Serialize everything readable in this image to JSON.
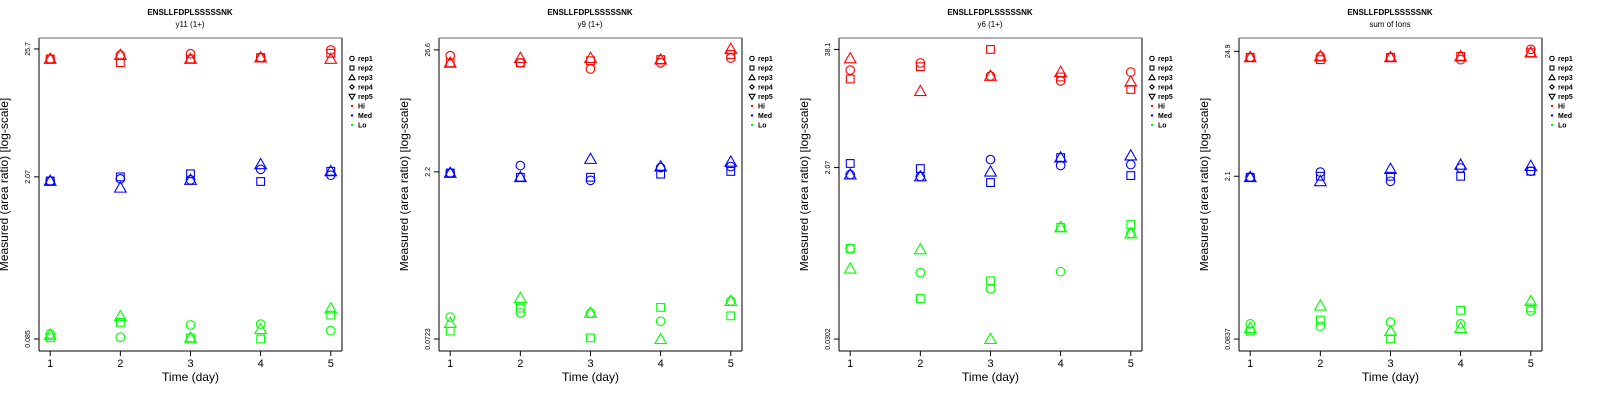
{
  "chart_data": [
    {
      "type": "scatter",
      "title": "ENSLLFDPLSSSSSNK",
      "subtitle": "y11 (1+)",
      "xlabel": "Time (day)",
      "ylabel": "Measured (area ratio) [log-scale]",
      "yscale": "log",
      "x_ticks": [
        "1",
        "2",
        "3",
        "4",
        "5"
      ],
      "y_ticks": [
        {
          "value": 25.7,
          "label": "25.7"
        },
        {
          "value": 2.07,
          "label": "2.07"
        },
        {
          "value": 0.085,
          "label": "0.085"
        }
      ],
      "xlim": [
        0.84,
        5.16
      ],
      "ylim": [
        0.0671,
        31.9
      ],
      "grid": false,
      "legend_position": "right",
      "legend": [
        {
          "label": "rep1",
          "symbol": "circle"
        },
        {
          "label": "rep2",
          "symbol": "square"
        },
        {
          "label": "rep3",
          "symbol": "triangle"
        },
        {
          "label": "rep4",
          "symbol": "diamond"
        },
        {
          "label": "rep5",
          "symbol": "triangle-down"
        },
        {
          "label": "Hi",
          "symbol": "dot",
          "color": "#ff0000"
        },
        {
          "label": "Med",
          "symbol": "dot",
          "color": "#0000ff"
        },
        {
          "label": "Lo",
          "symbol": "dot",
          "color": "#00ff00"
        }
      ],
      "x": [
        1,
        2,
        3,
        4,
        5
      ],
      "series": [
        {
          "name": "Hi rep1",
          "level": "Hi",
          "rep": "rep1",
          "values": [
            21.1,
            22.8,
            23.4,
            21.7,
            25.2
          ]
        },
        {
          "name": "Hi rep2",
          "level": "Hi",
          "rep": "rep2",
          "values": [
            21.1,
            19.6,
            21.1,
            21.7,
            23.6
          ]
        },
        {
          "name": "Hi rep3",
          "level": "Hi",
          "rep": "rep3",
          "values": [
            21.1,
            22.8,
            21.1,
            21.7,
            21.1
          ]
        },
        {
          "name": "Med rep1",
          "level": "Med",
          "rep": "rep1",
          "values": [
            1.91,
            1.99,
            1.95,
            2.4,
            2.14
          ]
        },
        {
          "name": "Med rep2",
          "level": "Med",
          "rep": "rep2",
          "values": [
            1.91,
            2.07,
            2.2,
            1.89,
            2.31
          ]
        },
        {
          "name": "Med rep3",
          "level": "Med",
          "rep": "rep3",
          "values": [
            1.91,
            1.67,
            1.95,
            2.65,
            2.31
          ]
        },
        {
          "name": "Lo rep1",
          "level": "Lo",
          "rep": "rep1",
          "values": [
            0.094,
            0.088,
            0.112,
            0.114,
            0.1
          ]
        },
        {
          "name": "Lo rep2",
          "level": "Lo",
          "rep": "rep2",
          "values": [
            0.087,
            0.118,
            0.087,
            0.085,
            0.136
          ]
        },
        {
          "name": "Lo rep3",
          "level": "Lo",
          "rep": "rep3",
          "values": [
            0.092,
            0.133,
            0.087,
            0.103,
            0.155
          ]
        }
      ]
    },
    {
      "type": "scatter",
      "title": "ENSLLFDPLSSSSSNK",
      "subtitle": "y9 (1+)",
      "xlabel": "Time (day)",
      "ylabel": "Measured (area ratio) [log-scale]",
      "yscale": "log",
      "x_ticks": [
        "1",
        "2",
        "3",
        "4",
        "5"
      ],
      "y_ticks": [
        {
          "value": 26.6,
          "label": "26.6"
        },
        {
          "value": 2.2,
          "label": "2.2"
        },
        {
          "value": 0.0723,
          "label": "0.0723"
        }
      ],
      "xlim": [
        0.84,
        5.16
      ],
      "ylim": [
        0.0566,
        33.9
      ],
      "grid": false,
      "legend_position": "right",
      "legend": [
        {
          "label": "rep1",
          "symbol": "circle"
        },
        {
          "label": "rep2",
          "symbol": "square"
        },
        {
          "label": "rep3",
          "symbol": "triangle"
        },
        {
          "label": "rep4",
          "symbol": "diamond"
        },
        {
          "label": "rep5",
          "symbol": "triangle-down"
        },
        {
          "label": "Hi",
          "symbol": "dot",
          "color": "#ff0000"
        },
        {
          "label": "Med",
          "symbol": "dot",
          "color": "#0000ff"
        },
        {
          "label": "Lo",
          "symbol": "dot",
          "color": "#00ff00"
        }
      ],
      "x": [
        1,
        2,
        3,
        4,
        5
      ],
      "series": [
        {
          "name": "Hi rep1",
          "level": "Hi",
          "rep": "rep1",
          "values": [
            23.6,
            20.4,
            18.0,
            20.4,
            22.5
          ]
        },
        {
          "name": "Hi rep2",
          "level": "Hi",
          "rep": "rep2",
          "values": [
            20.4,
            20.4,
            21.3,
            21.8,
            24.2
          ]
        },
        {
          "name": "Hi rep3",
          "level": "Hi",
          "rep": "rep3",
          "values": [
            20.4,
            22.5,
            22.5,
            21.8,
            27.1
          ]
        },
        {
          "name": "Med rep1",
          "level": "Med",
          "rep": "rep1",
          "values": [
            2.15,
            2.5,
            1.85,
            2.4,
            2.45
          ]
        },
        {
          "name": "Med rep2",
          "level": "Med",
          "rep": "rep2",
          "values": [
            2.15,
            1.97,
            1.97,
            2.1,
            2.22
          ]
        },
        {
          "name": "Med rep3",
          "level": "Med",
          "rep": "rep3",
          "values": [
            2.15,
            1.97,
            2.86,
            2.45,
            2.7
          ]
        },
        {
          "name": "Lo rep1",
          "level": "Lo",
          "rep": "rep1",
          "values": [
            0.113,
            0.123,
            0.123,
            0.104,
            0.157
          ]
        },
        {
          "name": "Lo rep2",
          "level": "Lo",
          "rep": "rep2",
          "values": [
            0.085,
            0.136,
            0.074,
            0.138,
            0.116
          ]
        },
        {
          "name": "Lo rep3",
          "level": "Lo",
          "rep": "rep3",
          "values": [
            0.1,
            0.167,
            0.123,
            0.072,
            0.157
          ]
        }
      ]
    },
    {
      "type": "scatter",
      "title": "ENSLLFDPLSSSSSNK",
      "subtitle": "y6 (1+)",
      "xlabel": "Time (day)",
      "ylabel": "Measured (area ratio) [log-scale]",
      "yscale": "log",
      "x_ticks": [
        "1",
        "2",
        "3",
        "4",
        "5"
      ],
      "y_ticks": [
        {
          "value": 38.1,
          "label": "38.1"
        },
        {
          "value": 2.07,
          "label": "2.07"
        },
        {
          "value": 0.0302,
          "label": "0.0302"
        }
      ],
      "xlim": [
        0.84,
        5.16
      ],
      "ylim": [
        0.0225,
        50.5
      ],
      "grid": false,
      "legend_position": "right",
      "legend": [
        {
          "label": "rep1",
          "symbol": "circle"
        },
        {
          "label": "rep2",
          "symbol": "square"
        },
        {
          "label": "rep3",
          "symbol": "triangle"
        },
        {
          "label": "rep4",
          "symbol": "diamond"
        },
        {
          "label": "rep5",
          "symbol": "triangle-down"
        },
        {
          "label": "Hi",
          "symbol": "dot",
          "color": "#ff0000"
        },
        {
          "label": "Med",
          "symbol": "dot",
          "color": "#0000ff"
        },
        {
          "label": "Lo",
          "symbol": "dot",
          "color": "#00ff00"
        }
      ],
      "x": [
        1,
        2,
        3,
        4,
        5
      ],
      "series": [
        {
          "name": "Hi rep1",
          "level": "Hi",
          "rep": "rep1",
          "values": [
            22.9,
            27.3,
            19.8,
            17.5,
            21.8
          ]
        },
        {
          "name": "Hi rep2",
          "level": "Hi",
          "rep": "rep2",
          "values": [
            18.4,
            24.9,
            38.1,
            19.3,
            14.2
          ]
        },
        {
          "name": "Hi rep3",
          "level": "Hi",
          "rep": "rep3",
          "values": [
            30.5,
            13.6,
            19.8,
            21.8,
            17.2
          ]
        },
        {
          "name": "Med rep1",
          "level": "Med",
          "rep": "rep1",
          "values": [
            1.74,
            1.66,
            2.52,
            2.18,
            2.23
          ]
        },
        {
          "name": "Med rep2",
          "level": "Med",
          "rep": "rep2",
          "values": [
            2.29,
            2.02,
            1.43,
            2.65,
            1.7
          ]
        },
        {
          "name": "Med rep3",
          "level": "Med",
          "rep": "rep3",
          "values": [
            1.74,
            1.66,
            1.87,
            2.65,
            2.78
          ]
        },
        {
          "name": "Lo rep1",
          "level": "Lo",
          "rep": "rep1",
          "values": [
            0.282,
            0.155,
            0.104,
            0.159,
            0.407
          ]
        },
        {
          "name": "Lo rep2",
          "level": "Lo",
          "rep": "rep2",
          "values": [
            0.282,
            0.082,
            0.127,
            0.473,
            0.508
          ]
        },
        {
          "name": "Lo rep3",
          "level": "Lo",
          "rep": "rep3",
          "values": [
            0.171,
            0.275,
            0.0302,
            0.473,
            0.407
          ]
        }
      ]
    },
    {
      "type": "scatter",
      "title": "ENSLLFDPLSSSSSNK",
      "subtitle": "sum of Ions",
      "xlabel": "Time (day)",
      "ylabel": "Measured (area ratio) [log-scale]",
      "yscale": "log",
      "x_ticks": [
        "1",
        "2",
        "3",
        "4",
        "5"
      ],
      "y_ticks": [
        {
          "value": 24.9,
          "label": "24.9"
        },
        {
          "value": 2.1,
          "label": "2.1"
        },
        {
          "value": 0.0837,
          "label": "0.0837"
        }
      ],
      "xlim": [
        0.84,
        5.16
      ],
      "ylim": [
        0.0661,
        32.4
      ],
      "grid": false,
      "legend_position": "right",
      "legend": [
        {
          "label": "rep1",
          "symbol": "circle"
        },
        {
          "label": "rep2",
          "symbol": "square"
        },
        {
          "label": "rep3",
          "symbol": "triangle"
        },
        {
          "label": "rep4",
          "symbol": "diamond"
        },
        {
          "label": "rep5",
          "symbol": "triangle-down"
        },
        {
          "label": "Hi",
          "symbol": "dot",
          "color": "#ff0000"
        },
        {
          "label": "Med",
          "symbol": "dot",
          "color": "#0000ff"
        },
        {
          "label": "Lo",
          "symbol": "dot",
          "color": "#00ff00"
        }
      ],
      "x": [
        1,
        2,
        3,
        4,
        5
      ],
      "series": [
        {
          "name": "Hi rep1",
          "level": "Hi",
          "rep": "rep1",
          "values": [
            22.1,
            22.5,
            22.1,
            21.1,
            25.9
          ]
        },
        {
          "name": "Hi rep2",
          "level": "Hi",
          "rep": "rep2",
          "values": [
            22.1,
            21.1,
            22.1,
            22.5,
            24.2
          ]
        },
        {
          "name": "Hi rep3",
          "level": "Hi",
          "rep": "rep3",
          "values": [
            22.1,
            22.5,
            22.1,
            22.5,
            24.2
          ]
        },
        {
          "name": "Med rep1",
          "level": "Med",
          "rep": "rep1",
          "values": [
            2.06,
            2.28,
            1.9,
            2.47,
            2.32
          ]
        },
        {
          "name": "Med rep2",
          "level": "Med",
          "rep": "rep2",
          "values": [
            2.06,
            2.1,
            2.1,
            2.1,
            2.32
          ]
        },
        {
          "name": "Med rep3",
          "level": "Med",
          "rep": "rep3",
          "values": [
            2.06,
            1.9,
            2.42,
            2.63,
            2.57
          ]
        },
        {
          "name": "Lo rep1",
          "level": "Lo",
          "rep": "rep1",
          "values": [
            0.113,
            0.108,
            0.117,
            0.113,
            0.146
          ]
        },
        {
          "name": "Lo rep2",
          "level": "Lo",
          "rep": "rep2",
          "values": [
            0.098,
            0.122,
            0.084,
            0.148,
            0.155
          ]
        },
        {
          "name": "Lo rep3",
          "level": "Lo",
          "rep": "rep3",
          "values": [
            0.104,
            0.162,
            0.098,
            0.104,
            0.177
          ]
        }
      ]
    }
  ],
  "colors": {
    "Hi": "#ff0000",
    "Med": "#0000ff",
    "Lo": "#00ff00",
    "axis": "#000000",
    "box_shadow": "#808080"
  }
}
